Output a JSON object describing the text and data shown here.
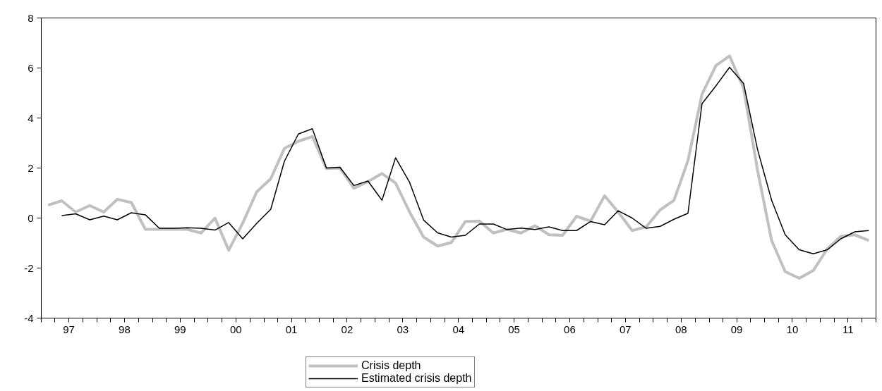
{
  "chart_data": {
    "type": "line",
    "x": [
      "1997-02-15",
      "1997-05-15",
      "1997-08-15",
      "1997-11-15",
      "1998-02-15",
      "1998-05-15",
      "1998-08-15",
      "1998-11-15",
      "1999-02-15",
      "1999-05-15",
      "1999-08-15",
      "1999-11-15",
      "2000-02-15",
      "2000-05-15",
      "2000-08-15",
      "2000-11-15",
      "2001-02-15",
      "2001-05-15",
      "2001-08-15",
      "2001-11-15",
      "2002-02-15",
      "2002-05-15",
      "2002-08-15",
      "2002-11-15",
      "2003-02-15",
      "2003-05-15",
      "2003-08-15",
      "2003-11-15",
      "2004-02-15",
      "2004-05-15",
      "2004-08-15",
      "2004-11-15",
      "2005-02-15",
      "2005-05-15",
      "2005-08-15",
      "2005-11-15",
      "2006-02-15",
      "2006-05-15",
      "2006-08-15",
      "2006-11-15",
      "2007-02-15",
      "2007-05-15",
      "2007-08-15",
      "2007-11-15",
      "2008-02-15",
      "2008-05-15",
      "2008-08-15",
      "2008-11-15",
      "2009-02-15",
      "2009-05-15",
      "2009-08-15",
      "2009-11-15",
      "2010-02-15",
      "2010-05-15",
      "2010-08-15",
      "2010-11-15",
      "2011-02-15",
      "2011-05-15",
      "2011-08-15",
      "2011-11-15"
    ],
    "series": [
      {
        "name": "Crisis depth",
        "color": "#c0c0c0",
        "values": [
          0.52,
          0.69,
          0.24,
          0.5,
          0.24,
          0.75,
          0.62,
          -0.45,
          -0.45,
          -0.45,
          -0.45,
          -0.6,
          0.0,
          -1.29,
          -0.2,
          1.05,
          1.57,
          2.78,
          3.07,
          3.26,
          1.98,
          2.0,
          1.19,
          1.46,
          1.78,
          1.4,
          0.24,
          -0.76,
          -1.12,
          -0.98,
          -0.14,
          -0.12,
          -0.6,
          -0.45,
          -0.6,
          -0.31,
          -0.67,
          -0.69,
          0.07,
          -0.12,
          0.89,
          0.24,
          -0.5,
          -0.35,
          0.33,
          0.71,
          2.29,
          4.95,
          6.1,
          6.48,
          5.19,
          1.9,
          -0.9,
          -2.14,
          -2.41,
          -2.1,
          -1.24,
          -0.73,
          -0.67,
          -0.9
        ]
      },
      {
        "name": "Estimated crisis depth",
        "color": "#000000",
        "values": [
          null,
          0.1,
          0.17,
          -0.07,
          0.08,
          -0.07,
          0.21,
          0.13,
          -0.41,
          -0.41,
          -0.39,
          -0.41,
          -0.48,
          -0.18,
          -0.83,
          -0.21,
          0.35,
          2.26,
          3.36,
          3.57,
          2.0,
          2.03,
          1.3,
          1.48,
          0.71,
          2.41,
          1.43,
          -0.08,
          -0.59,
          -0.76,
          -0.69,
          -0.24,
          -0.24,
          -0.46,
          -0.4,
          -0.46,
          -0.35,
          -0.5,
          -0.5,
          -0.14,
          -0.27,
          0.29,
          0.0,
          -0.41,
          -0.33,
          -0.05,
          0.19,
          4.57,
          5.29,
          6.03,
          5.38,
          2.73,
          0.71,
          -0.67,
          -1.27,
          -1.43,
          -1.27,
          -0.83,
          -0.55,
          -0.5
        ]
      }
    ],
    "xlim": [
      "1997-01-01",
      "2012-01-01"
    ],
    "xticks": [
      {
        "value": "1997-01-01",
        "label": null
      },
      {
        "value": "1997-04-01",
        "label": null
      },
      {
        "value": "1997-07-01",
        "label": "97"
      },
      {
        "value": "1997-10-01",
        "label": null
      },
      {
        "value": "1998-01-01",
        "label": null
      },
      {
        "value": "1998-04-01",
        "label": null
      },
      {
        "value": "1998-07-01",
        "label": "98"
      },
      {
        "value": "1998-10-01",
        "label": null
      },
      {
        "value": "1999-01-01",
        "label": null
      },
      {
        "value": "1999-04-01",
        "label": null
      },
      {
        "value": "1999-07-01",
        "label": "99"
      },
      {
        "value": "1999-10-01",
        "label": null
      },
      {
        "value": "2000-01-01",
        "label": null
      },
      {
        "value": "2000-04-01",
        "label": null
      },
      {
        "value": "2000-07-01",
        "label": "00"
      },
      {
        "value": "2000-10-01",
        "label": null
      },
      {
        "value": "2001-01-01",
        "label": null
      },
      {
        "value": "2001-04-01",
        "label": null
      },
      {
        "value": "2001-07-01",
        "label": "01"
      },
      {
        "value": "2001-10-01",
        "label": null
      },
      {
        "value": "2002-01-01",
        "label": null
      },
      {
        "value": "2002-04-01",
        "label": null
      },
      {
        "value": "2002-07-01",
        "label": "02"
      },
      {
        "value": "2002-10-01",
        "label": null
      },
      {
        "value": "2003-01-01",
        "label": null
      },
      {
        "value": "2003-04-01",
        "label": null
      },
      {
        "value": "2003-07-01",
        "label": "03"
      },
      {
        "value": "2003-10-01",
        "label": null
      },
      {
        "value": "2004-01-01",
        "label": null
      },
      {
        "value": "2004-04-01",
        "label": null
      },
      {
        "value": "2004-07-01",
        "label": "04"
      },
      {
        "value": "2004-10-01",
        "label": null
      },
      {
        "value": "2005-01-01",
        "label": null
      },
      {
        "value": "2005-04-01",
        "label": null
      },
      {
        "value": "2005-07-01",
        "label": "05"
      },
      {
        "value": "2005-10-01",
        "label": null
      },
      {
        "value": "2006-01-01",
        "label": null
      },
      {
        "value": "2006-04-01",
        "label": null
      },
      {
        "value": "2006-07-01",
        "label": "06"
      },
      {
        "value": "2006-10-01",
        "label": null
      },
      {
        "value": "2007-01-01",
        "label": null
      },
      {
        "value": "2007-04-01",
        "label": null
      },
      {
        "value": "2007-07-01",
        "label": "07"
      },
      {
        "value": "2007-10-01",
        "label": null
      },
      {
        "value": "2008-01-01",
        "label": null
      },
      {
        "value": "2008-04-01",
        "label": null
      },
      {
        "value": "2008-07-01",
        "label": "08"
      },
      {
        "value": "2008-10-01",
        "label": null
      },
      {
        "value": "2009-01-01",
        "label": null
      },
      {
        "value": "2009-04-01",
        "label": null
      },
      {
        "value": "2009-07-01",
        "label": "09"
      },
      {
        "value": "2009-10-01",
        "label": null
      },
      {
        "value": "2010-01-01",
        "label": null
      },
      {
        "value": "2010-04-01",
        "label": null
      },
      {
        "value": "2010-07-01",
        "label": "10"
      },
      {
        "value": "2010-10-01",
        "label": null
      },
      {
        "value": "2011-01-01",
        "label": null
      },
      {
        "value": "2011-04-01",
        "label": null
      },
      {
        "value": "2011-07-01",
        "label": "11"
      },
      {
        "value": "2011-10-01",
        "label": null
      },
      {
        "value": "2012-01-01",
        "label": null
      }
    ],
    "ylim": [
      -4,
      8
    ],
    "yticks": [
      -4,
      -2,
      0,
      2,
      4,
      6,
      8
    ],
    "legend": "bottom",
    "grid": false
  }
}
